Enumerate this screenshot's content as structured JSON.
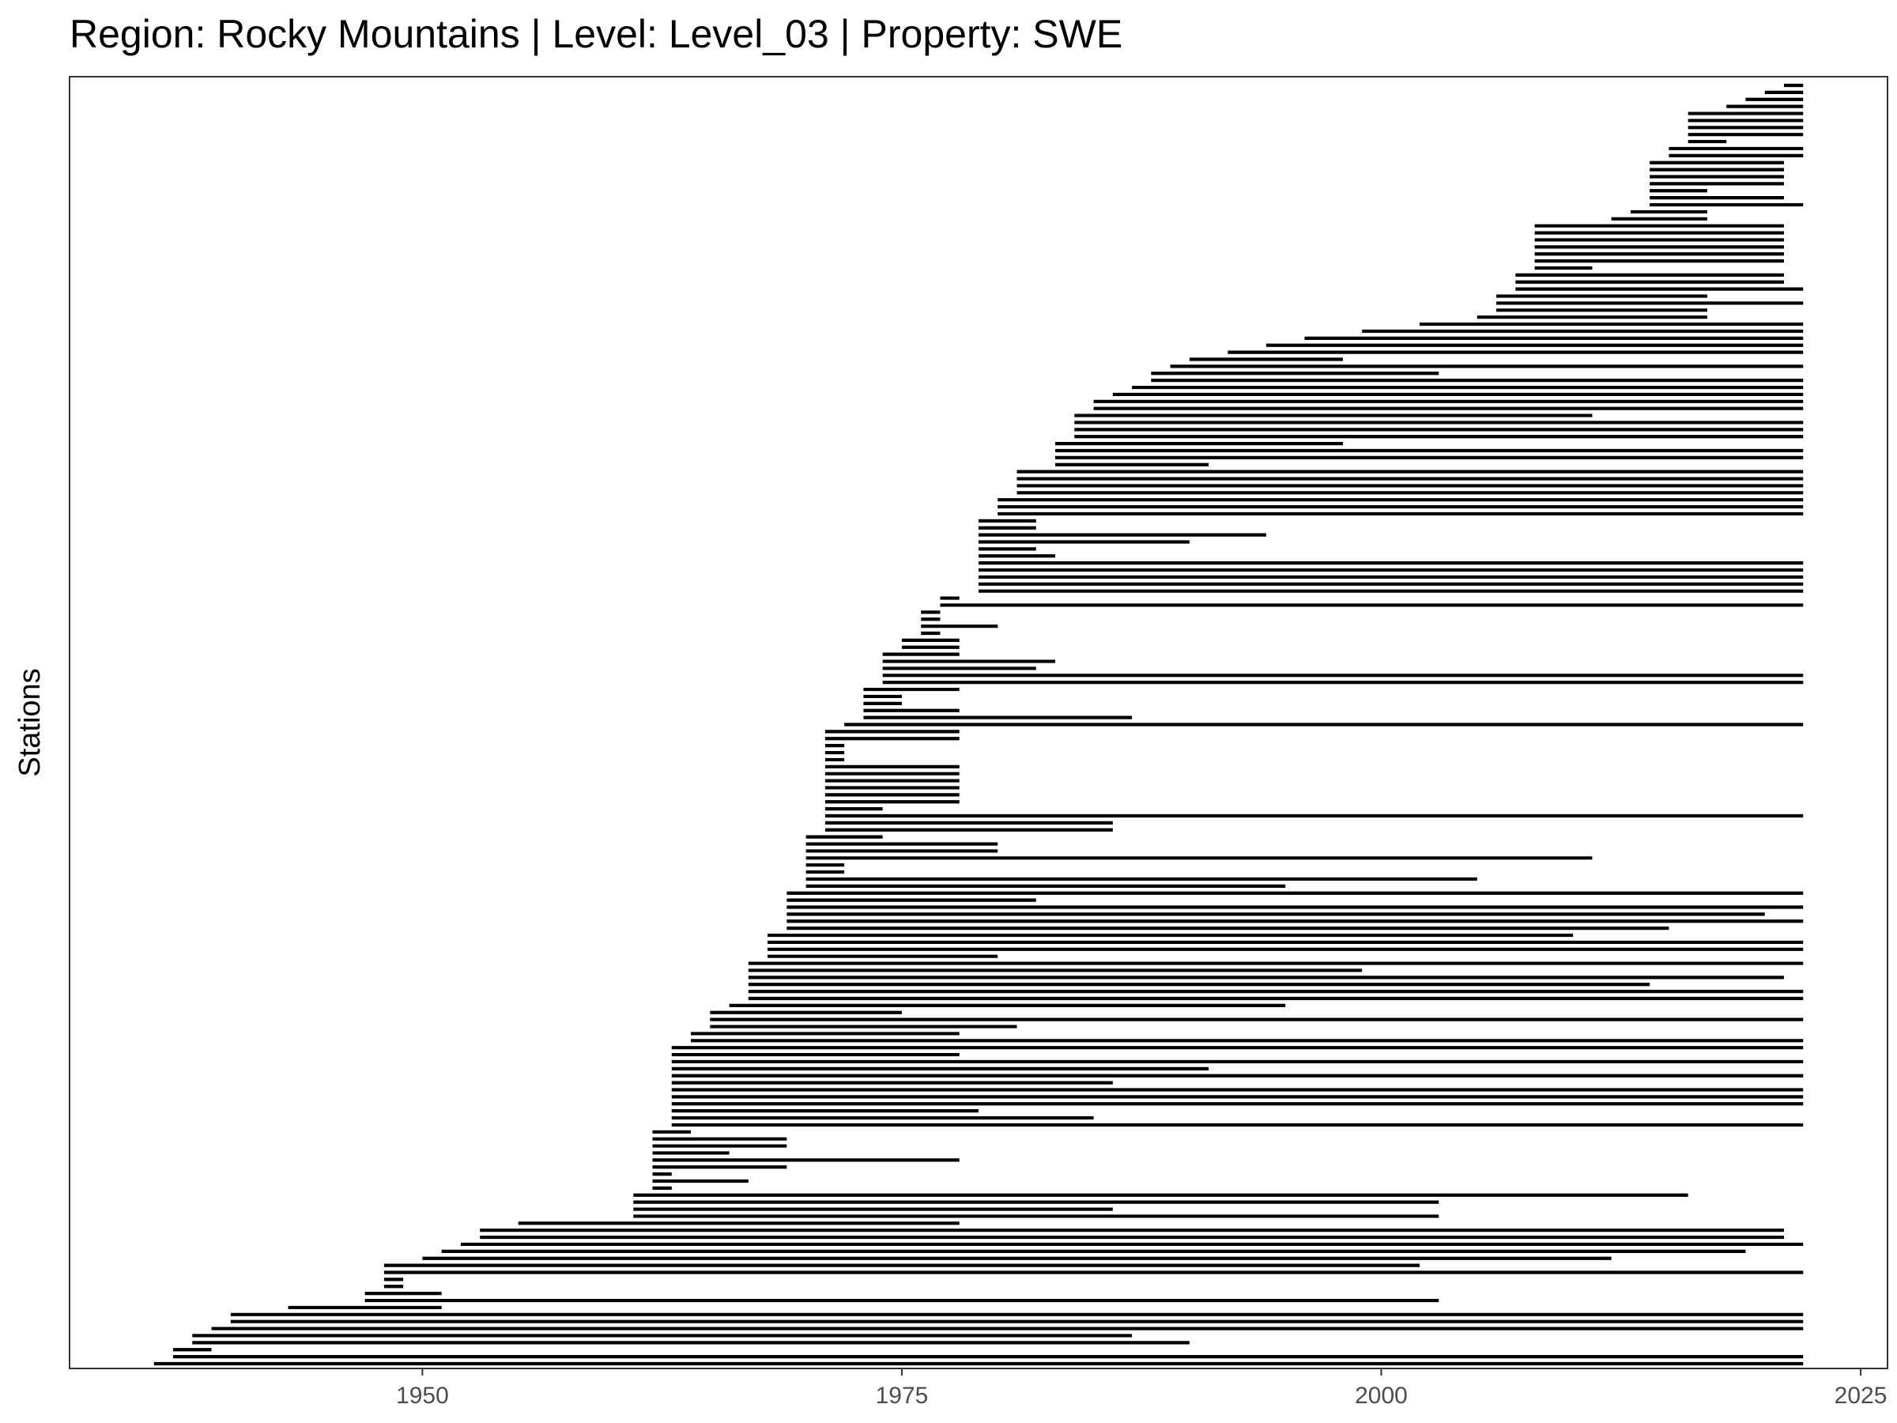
{
  "chart_data": {
    "type": "segment",
    "title": "Region: Rocky Mountains | Level: Level_03 | Property: SWE",
    "xlabel": "",
    "ylabel": "Stations",
    "xlim": [
      1931.6,
      2026.4
    ],
    "xticks": [
      1950,
      1975,
      2000,
      2025
    ],
    "grid": false,
    "legend": "none",
    "line_color": "#000000",
    "panel_border_color": "#333333",
    "segments_bottom_to_top": [
      [
        1936.0,
        2022.0
      ],
      [
        1937.0,
        2022.0
      ],
      [
        1937.0,
        1939.0
      ],
      [
        1938.0,
        1990.0
      ],
      [
        1938.0,
        1987.0
      ],
      [
        1939.0,
        2022.0
      ],
      [
        1940.0,
        2022.0
      ],
      [
        1940.0,
        2022.0
      ],
      [
        1943.0,
        1951.0
      ],
      [
        1947.0,
        2003.0
      ],
      [
        1947.0,
        1951.0
      ],
      [
        1948.0,
        1949.0
      ],
      [
        1948.0,
        1949.0
      ],
      [
        1948.0,
        2022.0
      ],
      [
        1948.0,
        2002.0
      ],
      [
        1950.0,
        2012.0
      ],
      [
        1951.0,
        2019.0
      ],
      [
        1952.0,
        2022.0
      ],
      [
        1953.0,
        2021.0
      ],
      [
        1953.0,
        2021.0
      ],
      [
        1955.0,
        1978.0
      ],
      [
        1961.0,
        2003.0
      ],
      [
        1961.0,
        1986.0
      ],
      [
        1961.0,
        2003.0
      ],
      [
        1961.0,
        2016.0
      ],
      [
        1962.0,
        1963.0
      ],
      [
        1962.0,
        1967.0
      ],
      [
        1962.0,
        1963.0
      ],
      [
        1962.0,
        1969.0
      ],
      [
        1962.0,
        1978.0
      ],
      [
        1962.0,
        1966.0
      ],
      [
        1962.0,
        1969.0
      ],
      [
        1962.0,
        1969.0
      ],
      [
        1962.0,
        1964.0
      ],
      [
        1963.0,
        2022.0
      ],
      [
        1963.0,
        1985.0
      ],
      [
        1963.0,
        1979.0
      ],
      [
        1963.0,
        2022.0
      ],
      [
        1963.0,
        2022.0
      ],
      [
        1963.0,
        2022.0
      ],
      [
        1963.0,
        1986.0
      ],
      [
        1963.0,
        2022.0
      ],
      [
        1963.0,
        1991.0
      ],
      [
        1963.0,
        2022.0
      ],
      [
        1963.0,
        1978.0
      ],
      [
        1963.0,
        2022.0
      ],
      [
        1964.0,
        2022.0
      ],
      [
        1964.0,
        1978.0
      ],
      [
        1965.0,
        1981.0
      ],
      [
        1965.0,
        2022.0
      ],
      [
        1965.0,
        1975.0
      ],
      [
        1966.0,
        1995.0
      ],
      [
        1967.0,
        2022.0
      ],
      [
        1967.0,
        2022.0
      ],
      [
        1967.0,
        2014.0
      ],
      [
        1967.0,
        2021.0
      ],
      [
        1967.0,
        1999.0
      ],
      [
        1967.0,
        2022.0
      ],
      [
        1968.0,
        1980.0
      ],
      [
        1968.0,
        2022.0
      ],
      [
        1968.0,
        2022.0
      ],
      [
        1968.0,
        2010.0
      ],
      [
        1969.0,
        2015.0
      ],
      [
        1969.0,
        2022.0
      ],
      [
        1969.0,
        2020.0
      ],
      [
        1969.0,
        2022.0
      ],
      [
        1969.0,
        1982.0
      ],
      [
        1969.0,
        2022.0
      ],
      [
        1970.0,
        1995.0
      ],
      [
        1970.0,
        2005.0
      ],
      [
        1970.0,
        1972.0
      ],
      [
        1970.0,
        1972.0
      ],
      [
        1970.0,
        2011.0
      ],
      [
        1970.0,
        1980.0
      ],
      [
        1970.0,
        1980.0
      ],
      [
        1970.0,
        1974.0
      ],
      [
        1971.0,
        1986.0
      ],
      [
        1971.0,
        1986.0
      ],
      [
        1971.0,
        2022.0
      ],
      [
        1971.0,
        1974.0
      ],
      [
        1971.0,
        1978.0
      ],
      [
        1971.0,
        1978.0
      ],
      [
        1971.0,
        1978.0
      ],
      [
        1971.0,
        1978.0
      ],
      [
        1971.0,
        1978.0
      ],
      [
        1971.0,
        1978.0
      ],
      [
        1971.0,
        1972.0
      ],
      [
        1971.0,
        1972.0
      ],
      [
        1971.0,
        1972.0
      ],
      [
        1971.0,
        1978.0
      ],
      [
        1971.0,
        1978.0
      ],
      [
        1972.0,
        2022.0
      ],
      [
        1973.0,
        1987.0
      ],
      [
        1973.0,
        1978.0
      ],
      [
        1973.0,
        1975.0
      ],
      [
        1973.0,
        1975.0
      ],
      [
        1973.0,
        1978.0
      ],
      [
        1974.0,
        2022.0
      ],
      [
        1974.0,
        2022.0
      ],
      [
        1974.0,
        1982.0
      ],
      [
        1974.0,
        1983.0
      ],
      [
        1974.0,
        1978.0
      ],
      [
        1975.0,
        1978.0
      ],
      [
        1975.0,
        1978.0
      ],
      [
        1976.0,
        1977.0
      ],
      [
        1976.0,
        1980.0
      ],
      [
        1976.0,
        1977.0
      ],
      [
        1976.0,
        1977.0
      ],
      [
        1977.0,
        2022.0
      ],
      [
        1977.0,
        1978.0
      ],
      [
        1979.0,
        2022.0
      ],
      [
        1979.0,
        2022.0
      ],
      [
        1979.0,
        2022.0
      ],
      [
        1979.0,
        2022.0
      ],
      [
        1979.0,
        2022.0
      ],
      [
        1979.0,
        1983.0
      ],
      [
        1979.0,
        1982.0
      ],
      [
        1979.0,
        1990.0
      ],
      [
        1979.0,
        1994.0
      ],
      [
        1979.0,
        1982.0
      ],
      [
        1979.0,
        1982.0
      ],
      [
        1980.0,
        2022.0
      ],
      [
        1980.0,
        2022.0
      ],
      [
        1980.0,
        2022.0
      ],
      [
        1981.0,
        2022.0
      ],
      [
        1981.0,
        2022.0
      ],
      [
        1981.0,
        2022.0
      ],
      [
        1981.0,
        2022.0
      ],
      [
        1983.0,
        1991.0
      ],
      [
        1983.0,
        2022.0
      ],
      [
        1983.0,
        2022.0
      ],
      [
        1983.0,
        1998.0
      ],
      [
        1984.0,
        2022.0
      ],
      [
        1984.0,
        2022.0
      ],
      [
        1984.0,
        2022.0
      ],
      [
        1984.0,
        2011.0
      ],
      [
        1985.0,
        2022.0
      ],
      [
        1985.0,
        2022.0
      ],
      [
        1986.0,
        2022.0
      ],
      [
        1987.0,
        2022.0
      ],
      [
        1988.0,
        2022.0
      ],
      [
        1988.0,
        2003.0
      ],
      [
        1989.0,
        2022.0
      ],
      [
        1990.0,
        1998.0
      ],
      [
        1992.0,
        2022.0
      ],
      [
        1994.0,
        2022.0
      ],
      [
        1996.0,
        2022.0
      ],
      [
        1999.0,
        2022.0
      ],
      [
        2002.0,
        2022.0
      ],
      [
        2005.0,
        2017.0
      ],
      [
        2006.0,
        2017.0
      ],
      [
        2006.0,
        2022.0
      ],
      [
        2006.0,
        2017.0
      ],
      [
        2007.0,
        2022.0
      ],
      [
        2007.0,
        2021.0
      ],
      [
        2007.0,
        2021.0
      ],
      [
        2008.0,
        2011.0
      ],
      [
        2008.0,
        2021.0
      ],
      [
        2008.0,
        2021.0
      ],
      [
        2008.0,
        2021.0
      ],
      [
        2008.0,
        2021.0
      ],
      [
        2008.0,
        2021.0
      ],
      [
        2008.0,
        2021.0
      ],
      [
        2012.0,
        2017.0
      ],
      [
        2013.0,
        2017.0
      ],
      [
        2014.0,
        2022.0
      ],
      [
        2014.0,
        2021.0
      ],
      [
        2014.0,
        2017.0
      ],
      [
        2014.0,
        2021.0
      ],
      [
        2014.0,
        2021.0
      ],
      [
        2014.0,
        2021.0
      ],
      [
        2014.0,
        2021.0
      ],
      [
        2015.0,
        2022.0
      ],
      [
        2015.0,
        2022.0
      ],
      [
        2016.0,
        2018.0
      ],
      [
        2016.0,
        2022.0
      ],
      [
        2016.0,
        2022.0
      ],
      [
        2016.0,
        2022.0
      ],
      [
        2016.0,
        2022.0
      ],
      [
        2018.0,
        2022.0
      ],
      [
        2019.0,
        2022.0
      ],
      [
        2020.0,
        2022.0
      ],
      [
        2021.0,
        2022.0
      ]
    ]
  }
}
